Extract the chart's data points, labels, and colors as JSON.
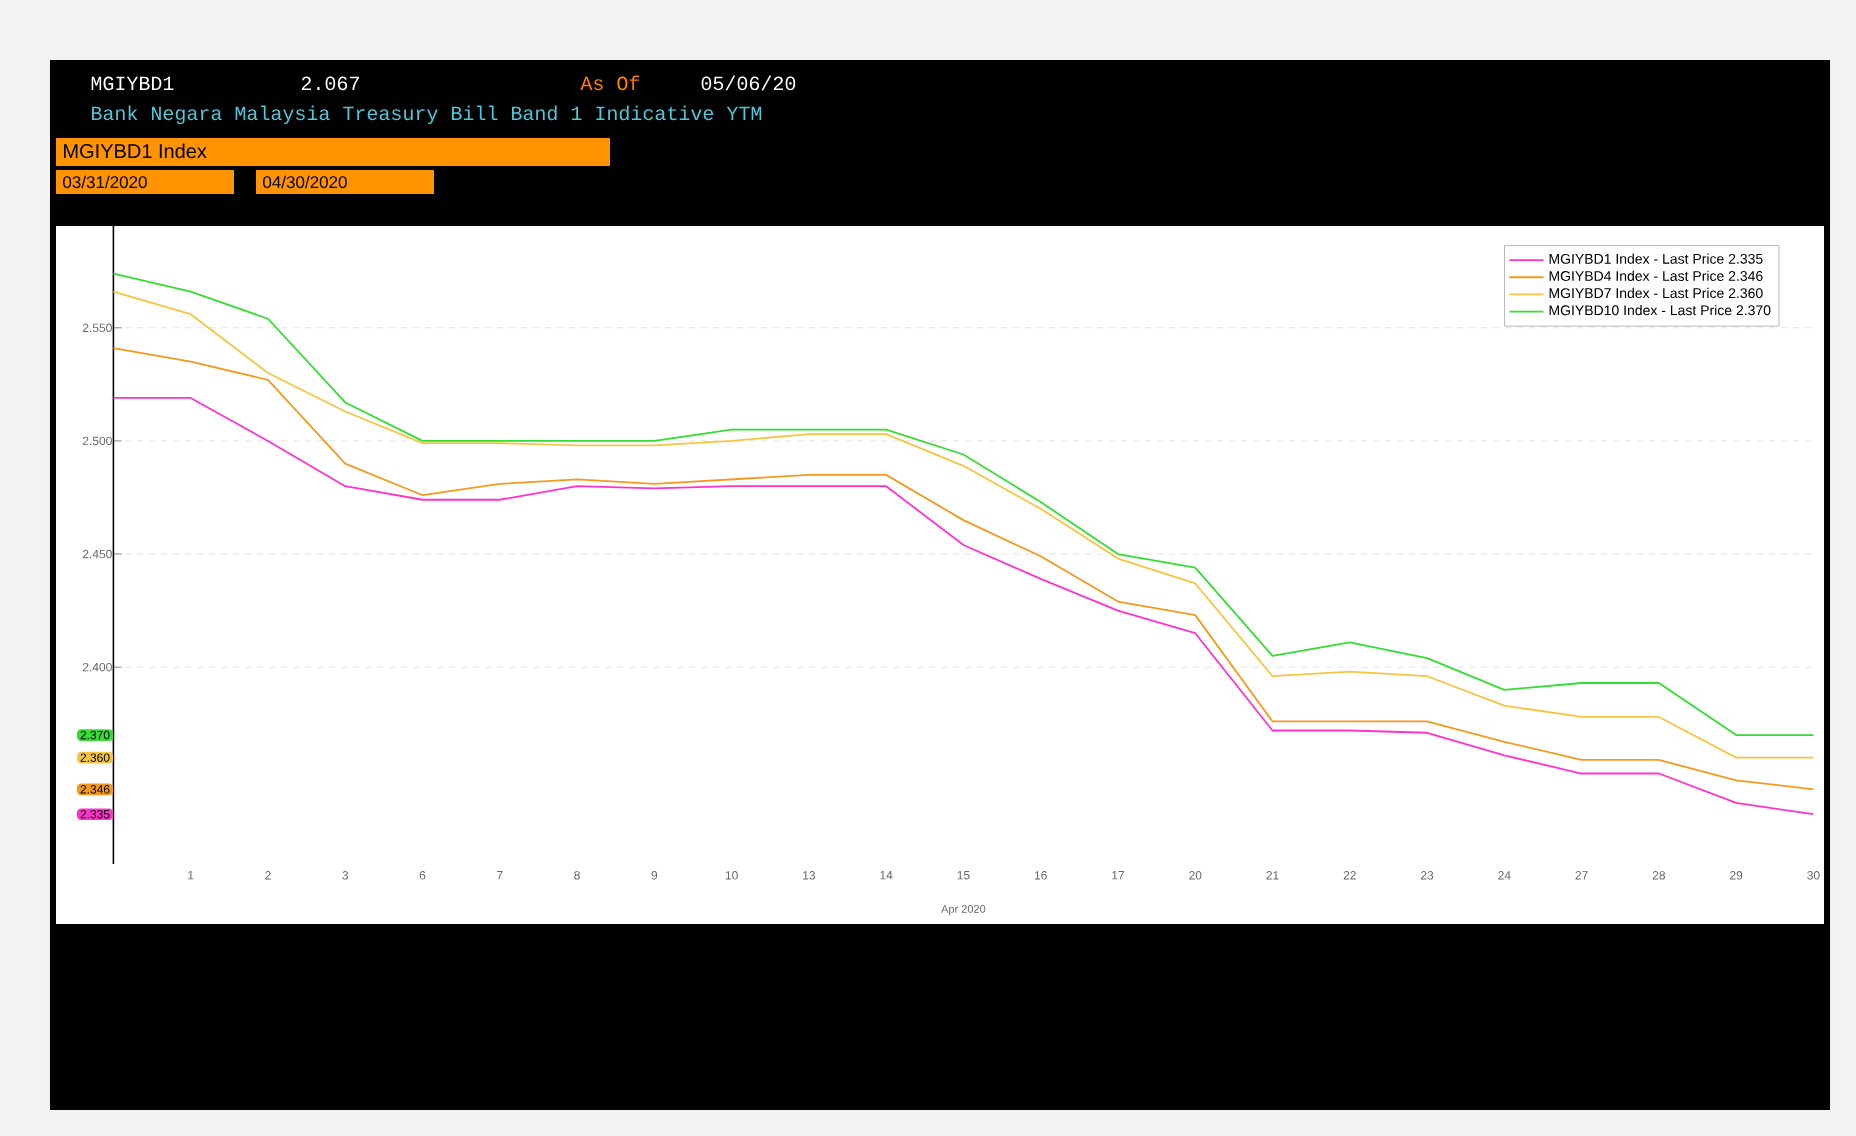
{
  "chart_data": {
    "type": "line",
    "title": "Bank Negara Malaysia Treasury Bill Band 1 Indicative YTM",
    "xlabel": "Apr 2020",
    "categories": [
      null,
      "1",
      "2",
      "3",
      "6",
      "7",
      "8",
      "9",
      "10",
      "13",
      "14",
      "15",
      "16",
      "17",
      "20",
      "21",
      "22",
      "23",
      "24",
      "27",
      "28",
      "29",
      "30"
    ],
    "series": [
      {
        "name": "MGIYBD1 Index - Last Price 2.335",
        "color": "#ff33cc",
        "values": [
          2.519,
          2.519,
          2.5,
          2.48,
          2.474,
          2.474,
          2.48,
          2.479,
          2.48,
          2.48,
          2.48,
          2.454,
          2.439,
          2.425,
          2.415,
          2.372,
          2.372,
          2.371,
          2.361,
          2.353,
          2.353,
          2.34,
          2.335
        ]
      },
      {
        "name": "MGIYBD4 Index - Last Price 2.346",
        "color": "#f39a1e",
        "values": [
          2.541,
          2.535,
          2.527,
          2.49,
          2.476,
          2.481,
          2.483,
          2.481,
          2.483,
          2.485,
          2.485,
          2.465,
          2.449,
          2.429,
          2.423,
          2.376,
          2.376,
          2.376,
          2.367,
          2.359,
          2.359,
          2.35,
          2.346
        ]
      },
      {
        "name": "MGIYBD7 Index - Last Price 2.360",
        "color": "#f5c542",
        "values": [
          2.566,
          2.556,
          2.53,
          2.513,
          2.499,
          2.499,
          2.498,
          2.498,
          2.5,
          2.503,
          2.503,
          2.489,
          2.47,
          2.448,
          2.437,
          2.396,
          2.398,
          2.396,
          2.383,
          2.378,
          2.378,
          2.36,
          2.36
        ]
      },
      {
        "name": "MGIYBD10 Index - Last Price 2.370",
        "color": "#33dd33",
        "values": [
          2.574,
          2.566,
          2.554,
          2.517,
          2.5,
          2.5,
          2.5,
          2.5,
          2.505,
          2.505,
          2.505,
          2.494,
          2.473,
          2.45,
          2.444,
          2.405,
          2.411,
          2.404,
          2.39,
          2.393,
          2.393,
          2.37,
          2.37
        ]
      }
    ],
    "ylim": [
      2.313,
      2.595
    ],
    "yticks": [
      {
        "value": 2.4,
        "label": "2.400"
      },
      {
        "value": 2.45,
        "label": "2.450"
      },
      {
        "value": 2.5,
        "label": "2.500"
      },
      {
        "value": 2.55,
        "label": "2.550"
      }
    ],
    "grid": "y",
    "legend": "top right",
    "annotations": [
      "MGIYBD1",
      "2.067",
      "As Of",
      "05/06/20",
      "MGIYBD1 Index",
      "03/31/2020",
      "04/30/2020",
      "2.335",
      "2.346",
      "2.360",
      "2.370"
    ]
  }
}
